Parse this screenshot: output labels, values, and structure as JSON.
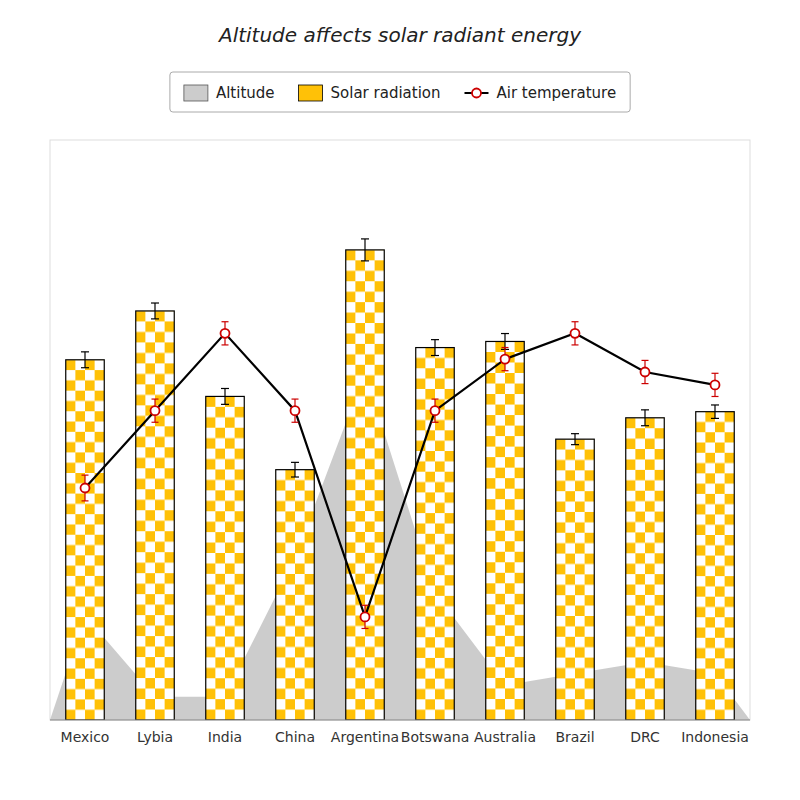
{
  "chart_data": {
    "type": "bar",
    "title": "Altitude affects solar radiant energy",
    "categories": [
      "Mexico",
      "Lybia",
      "India",
      "China",
      "Argentina",
      "Botswana",
      "Australia",
      "Brazil",
      "DRC",
      "Indonesia"
    ],
    "series": [
      {
        "name": "Altitude",
        "type": "area",
        "color": "#BBBBBB",
        "values": [
          1.71,
          0.38,
          0.38,
          2.66,
          5.7,
          2.09,
          0.57,
          0.76,
          0.95,
          0.76
        ]
      },
      {
        "name": "Solar radiation",
        "type": "bar",
        "color": "#FFC107",
        "values": [
          5.9,
          6.7,
          5.3,
          4.1,
          7.7,
          6.1,
          6.2,
          4.6,
          4.95,
          5.05
        ],
        "errors": [
          0.13,
          0.13,
          0.13,
          0.12,
          0.18,
          0.13,
          0.13,
          0.09,
          0.13,
          0.11
        ]
      },
      {
        "name": "Air temperature",
        "type": "line",
        "axis": "y2",
        "color": "#000000",
        "marker": "circle",
        "values": [
          18,
          24,
          30,
          24,
          8,
          24,
          28,
          30,
          27,
          26
        ],
        "errors": [
          1.0,
          0.9,
          0.9,
          0.9,
          0.9,
          0.9,
          0.9,
          0.9,
          0.9,
          0.9
        ]
      }
    ],
    "ylim": [
      0,
      9.5
    ],
    "y2lim": [
      0,
      45
    ],
    "tick_labels": "x",
    "grid": false,
    "legend": "top"
  }
}
